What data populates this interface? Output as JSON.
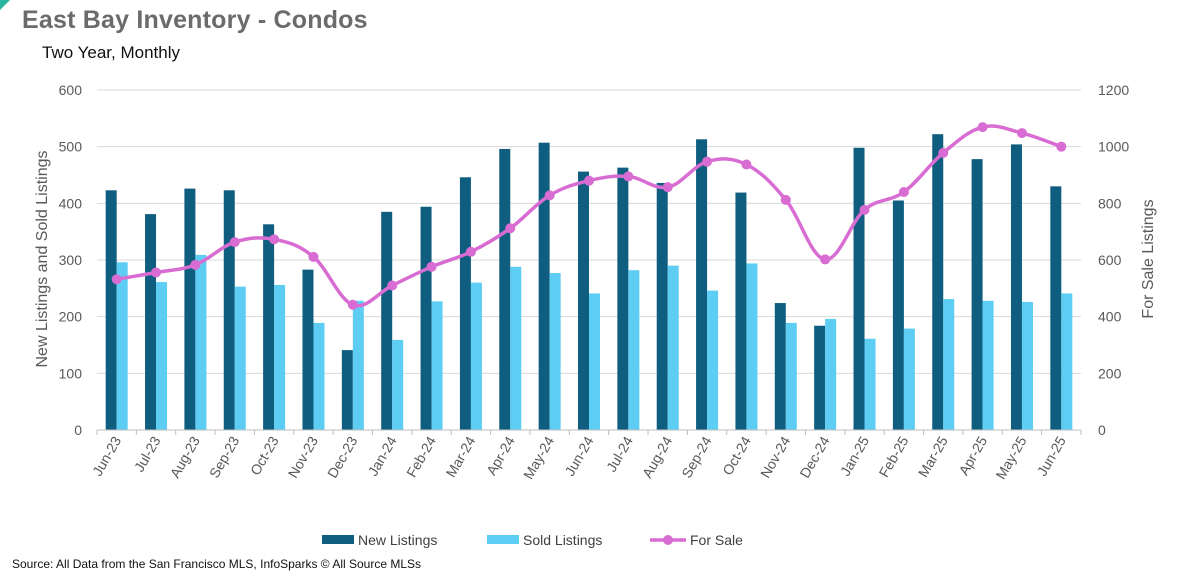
{
  "header": {
    "title": "East Bay Inventory - Condos",
    "subtitle": "Two Year, Monthly"
  },
  "footer": {
    "source": "Source: All Data from the San Francisco MLS, InfoSparks © All Source MLSs"
  },
  "chart_data": {
    "type": "bar",
    "title": "East Bay Inventory - Condos",
    "subtitle": "Two Year, Monthly",
    "categories": [
      "Jun-23",
      "Jul-23",
      "Aug-23",
      "Sep-23",
      "Oct-23",
      "Nov-23",
      "Dec-23",
      "Jan-24",
      "Feb-24",
      "Mar-24",
      "Apr-24",
      "May-24",
      "Jun-24",
      "Jul-24",
      "Aug-24",
      "Sep-24",
      "Oct-24",
      "Nov-24",
      "Dec-24",
      "Jan-25",
      "Feb-25",
      "Mar-25",
      "Apr-25",
      "May-25",
      "Jun-25"
    ],
    "series": [
      {
        "name": "New Listings",
        "type": "bar",
        "axis": "left",
        "color": "#0f5e7f",
        "values": [
          423,
          381,
          426,
          423,
          363,
          283,
          141,
          385,
          394,
          446,
          496,
          507,
          456,
          463,
          436,
          513,
          419,
          224,
          184,
          498,
          405,
          522,
          478,
          504,
          430
        ]
      },
      {
        "name": "Sold Listings",
        "type": "bar",
        "axis": "left",
        "color": "#5dcdf3",
        "values": [
          296,
          261,
          309,
          253,
          256,
          189,
          228,
          159,
          227,
          260,
          288,
          277,
          241,
          282,
          290,
          246,
          294,
          189,
          196,
          161,
          179,
          231,
          228,
          226,
          241
        ]
      },
      {
        "name": "For Sale",
        "type": "line",
        "axis": "right",
        "color": "#d86cd3",
        "values": [
          532,
          556,
          583,
          663,
          673,
          611,
          442,
          510,
          576,
          629,
          712,
          828,
          880,
          895,
          857,
          947,
          937,
          812,
          602,
          777,
          840,
          978,
          1069,
          1048,
          1000
        ]
      }
    ],
    "ylabel": "New Listings and Sold Listings",
    "ylabel_right": "For Sale Listings",
    "ylim": [
      0,
      600
    ],
    "ylim_right": [
      0,
      1200
    ],
    "yticks": [
      "0",
      "100",
      "200",
      "300",
      "400",
      "500",
      "600"
    ],
    "yticks_right": [
      "0",
      "200",
      "400",
      "600",
      "800",
      "1000",
      "1200"
    ],
    "grid": true,
    "legend_position": "bottom"
  }
}
